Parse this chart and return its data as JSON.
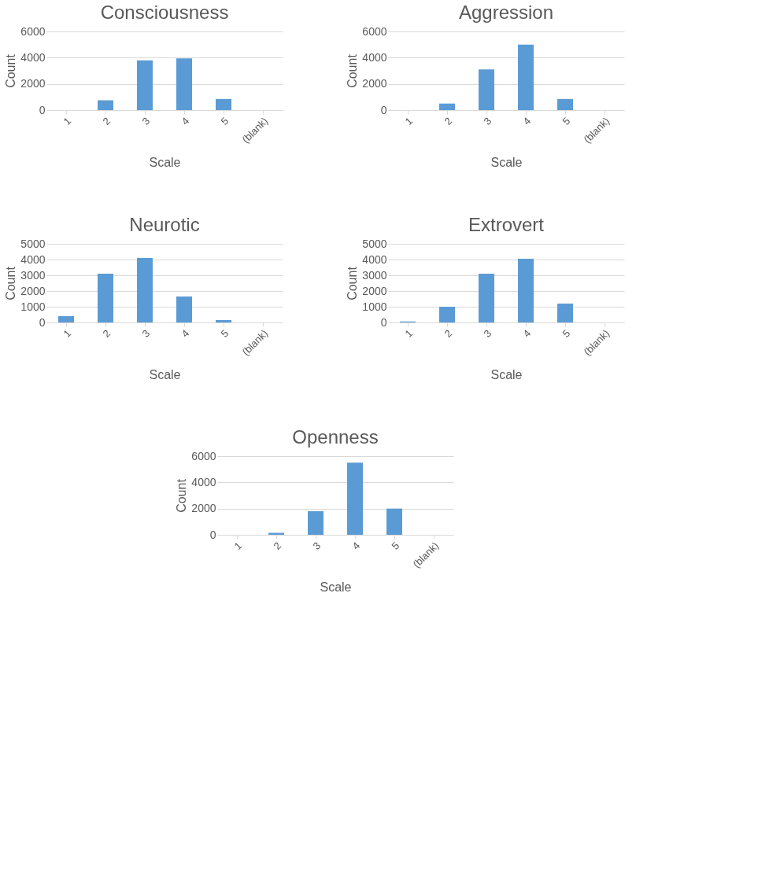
{
  "chart_data": [
    {
      "type": "bar",
      "title": "Consciousness",
      "xlabel": "Scale",
      "ylabel": "Count",
      "categories": [
        "1",
        "2",
        "3",
        "4",
        "5",
        "(blank)"
      ],
      "values": [
        null,
        750,
        3800,
        3950,
        850,
        0
      ],
      "color": "#5b9bd5",
      "ylim": [
        0,
        6000
      ],
      "yticks": [
        0,
        2000,
        4000,
        6000
      ],
      "grid": "y"
    },
    {
      "type": "bar",
      "title": "Aggression",
      "xlabel": "Scale",
      "ylabel": "Count",
      "categories": [
        "1",
        "2",
        "3",
        "4",
        "5",
        "(blank)"
      ],
      "values": [
        null,
        500,
        3100,
        5000,
        850,
        0
      ],
      "color": "#5b9bd5",
      "ylim": [
        0,
        6000
      ],
      "yticks": [
        0,
        2000,
        4000,
        6000
      ],
      "grid": "y"
    },
    {
      "type": "bar",
      "title": "Neurotic",
      "xlabel": "Scale",
      "ylabel": "Count",
      "categories": [
        "1",
        "2",
        "3",
        "4",
        "5",
        "(blank)"
      ],
      "values": [
        400,
        3100,
        4100,
        1650,
        150,
        0
      ],
      "color": "#5b9bd5",
      "ylim": [
        0,
        5000
      ],
      "yticks": [
        0,
        1000,
        2000,
        3000,
        4000,
        5000
      ],
      "grid": "y"
    },
    {
      "type": "bar",
      "title": "Extrovert",
      "xlabel": "Scale",
      "ylabel": "Count",
      "categories": [
        "1",
        "2",
        "3",
        "4",
        "5",
        "(blank)"
      ],
      "values": [
        60,
        1000,
        3100,
        4050,
        1200,
        0
      ],
      "color": "#5b9bd5",
      "ylim": [
        0,
        5000
      ],
      "yticks": [
        0,
        1000,
        2000,
        3000,
        4000,
        5000
      ],
      "grid": "y"
    },
    {
      "type": "bar",
      "title": "Openness",
      "xlabel": "Scale",
      "ylabel": "Count",
      "categories": [
        "1",
        "2",
        "3",
        "4",
        "5",
        "(blank)"
      ],
      "values": [
        null,
        150,
        1800,
        5500,
        2000,
        0
      ],
      "color": "#5b9bd5",
      "ylim": [
        0,
        6000
      ],
      "yticks": [
        0,
        2000,
        4000,
        6000
      ],
      "grid": "y"
    }
  ]
}
